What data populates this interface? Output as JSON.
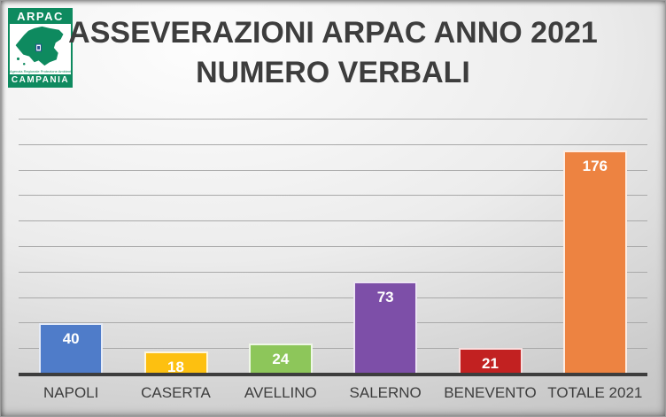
{
  "logo": {
    "org": "ARPAC",
    "region": "CAMPANIA",
    "subtitle": "Agenzia Regionale Protezione Ambientale",
    "green": "#0e8a5f"
  },
  "title": {
    "line1": "ASSEVERAZIONI ARPAC ANNO 2021",
    "line2": "NUMERO VERBALI"
  },
  "chart_data": {
    "type": "bar",
    "title": "ASSEVERAZIONI ARPAC ANNO 2021 NUMERO VERBALI",
    "categories": [
      "NAPOLI",
      "CASERTA",
      "AVELLINO",
      "SALERNO",
      "BENEVENTO",
      "TOTALE 2021"
    ],
    "values": [
      40,
      18,
      24,
      73,
      21,
      176
    ],
    "bar_colors": [
      "#4f7cc9",
      "#fdc010",
      "#8dc65a",
      "#7d4fa8",
      "#c22121",
      "#ed8341"
    ],
    "xlabel": "",
    "ylabel": "",
    "ylim": [
      0,
      200
    ],
    "gridline_step": 20,
    "grid": true,
    "legend": false,
    "data_label_color": "#ffffff",
    "axis_color": "#3d3d3d"
  }
}
